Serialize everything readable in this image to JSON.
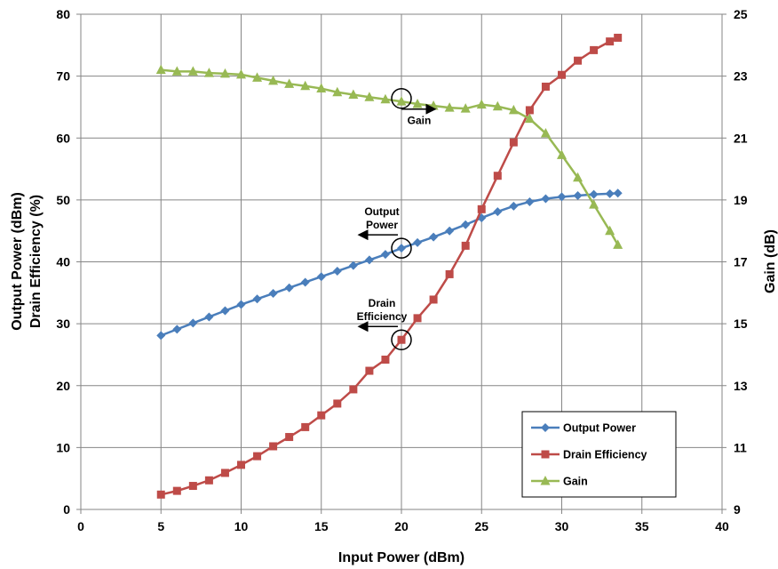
{
  "chart_data": {
    "type": "line",
    "xlabel": "Input Power (dBm)",
    "ylabel_left": [
      "Output Power (dBm)",
      "Drain Efficiency (%)"
    ],
    "ylabel_right": "Gain (dB)",
    "xlim": [
      0,
      40
    ],
    "xticks": [
      0,
      5,
      10,
      15,
      20,
      25,
      30,
      35,
      40
    ],
    "ylim_left": [
      0,
      80
    ],
    "yticks_left": [
      0,
      10,
      20,
      30,
      40,
      50,
      60,
      70,
      80
    ],
    "ylim_right": [
      9,
      25
    ],
    "yticks_right": [
      9,
      11,
      13,
      15,
      17,
      19,
      21,
      23,
      25
    ],
    "grid": true,
    "legend_position": "bottom-right",
    "series": [
      {
        "name": "Output Power",
        "axis": "left",
        "color": "#4a7ebb",
        "marker": "diamond",
        "x": [
          5,
          6,
          7,
          8,
          9,
          10,
          11,
          12,
          13,
          14,
          15,
          16,
          17,
          18,
          19,
          20,
          21,
          22,
          23,
          24,
          25,
          26,
          27,
          28,
          29,
          30,
          31,
          32,
          33,
          33.5
        ],
        "y": [
          28.1,
          29.1,
          30.1,
          31.1,
          32.1,
          33.1,
          34.0,
          34.9,
          35.8,
          36.7,
          37.6,
          38.5,
          39.4,
          40.3,
          41.2,
          42.2,
          43.1,
          44.0,
          45.0,
          46.0,
          47.1,
          48.1,
          49.0,
          49.7,
          50.2,
          50.5,
          50.7,
          50.9,
          51.0,
          51.1
        ]
      },
      {
        "name": "Drain Efficiency",
        "axis": "left",
        "color": "#be4b48",
        "marker": "square",
        "x": [
          5,
          6,
          7,
          8,
          9,
          10,
          11,
          12,
          13,
          14,
          15,
          16,
          17,
          18,
          19,
          20,
          21,
          22,
          23,
          24,
          25,
          26,
          27,
          28,
          29,
          30,
          31,
          32,
          33,
          33.5
        ],
        "y": [
          2.4,
          3.0,
          3.8,
          4.7,
          5.9,
          7.2,
          8.6,
          10.2,
          11.7,
          13.3,
          15.2,
          17.1,
          19.4,
          22.4,
          24.2,
          27.4,
          30.9,
          33.9,
          38.0,
          42.6,
          48.5,
          53.9,
          59.3,
          64.5,
          68.3,
          70.2,
          72.5,
          74.2,
          75.6,
          76.2
        ]
      },
      {
        "name": "Gain",
        "axis": "right",
        "color": "#98b954",
        "marker": "triangle",
        "x": [
          5,
          6,
          7,
          8,
          9,
          10,
          11,
          12,
          13,
          14,
          15,
          16,
          17,
          18,
          19,
          20,
          21,
          22,
          23,
          24,
          25,
          26,
          27,
          28,
          29,
          30,
          31,
          32,
          33,
          33.5
        ],
        "y": [
          23.2,
          23.15,
          23.15,
          23.1,
          23.08,
          23.05,
          22.95,
          22.85,
          22.75,
          22.68,
          22.6,
          22.48,
          22.4,
          22.32,
          22.25,
          22.18,
          22.1,
          22.04,
          21.98,
          21.95,
          22.08,
          22.02,
          21.9,
          21.62,
          21.15,
          20.45,
          19.72,
          18.85,
          18.0,
          17.55
        ]
      }
    ],
    "annotations": [
      {
        "text": "Gain",
        "lines": [
          "Gain"
        ],
        "x": 20,
        "y_left": 66.4,
        "arrow": "right"
      },
      {
        "text": "Output Power",
        "lines": [
          "Output",
          "Power"
        ],
        "x": 20,
        "y_left": 42.2,
        "arrow": "left"
      },
      {
        "text": "Drain Efficiency",
        "lines": [
          "Drain",
          "Efficiency"
        ],
        "x": 20,
        "y_left": 27.4,
        "arrow": "left"
      }
    ]
  }
}
